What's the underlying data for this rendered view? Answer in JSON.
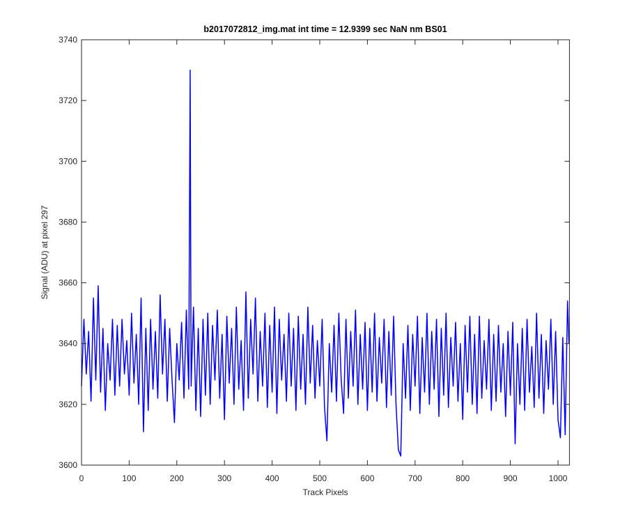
{
  "chart_data": {
    "type": "line",
    "title": "b2017072812_img.mat int time = 12.9399 sec  NaN nm BS01",
    "x_label": "Track Pixels",
    "y_label": "Signal (ADU) at pixel 297",
    "xlim": [
      0,
      1024
    ],
    "ylim": [
      3600,
      3740
    ],
    "xticks": [
      0,
      100,
      200,
      300,
      400,
      500,
      600,
      700,
      800,
      900,
      1000
    ],
    "yticks": [
      3600,
      3620,
      3640,
      3660,
      3680,
      3700,
      3720,
      3740
    ],
    "x": [
      0,
      5,
      10,
      15,
      20,
      25,
      30,
      35,
      40,
      45,
      50,
      55,
      60,
      65,
      70,
      75,
      80,
      85,
      90,
      95,
      100,
      105,
      110,
      115,
      120,
      125,
      130,
      135,
      140,
      145,
      150,
      155,
      160,
      165,
      170,
      175,
      180,
      185,
      190,
      195,
      200,
      205,
      210,
      215,
      220,
      225,
      228,
      230,
      235,
      240,
      245,
      250,
      255,
      260,
      265,
      270,
      275,
      280,
      285,
      290,
      295,
      300,
      305,
      310,
      315,
      320,
      325,
      330,
      335,
      340,
      345,
      350,
      355,
      360,
      365,
      370,
      375,
      380,
      385,
      390,
      395,
      400,
      405,
      410,
      415,
      420,
      425,
      430,
      435,
      440,
      445,
      450,
      455,
      460,
      465,
      470,
      475,
      480,
      485,
      490,
      495,
      500,
      505,
      510,
      515,
      520,
      525,
      530,
      535,
      540,
      545,
      550,
      555,
      560,
      565,
      570,
      575,
      580,
      585,
      590,
      595,
      600,
      605,
      610,
      615,
      620,
      625,
      630,
      635,
      640,
      645,
      650,
      655,
      660,
      665,
      670,
      675,
      680,
      685,
      690,
      695,
      700,
      705,
      710,
      715,
      720,
      725,
      730,
      735,
      740,
      745,
      750,
      755,
      760,
      765,
      770,
      775,
      780,
      785,
      790,
      795,
      800,
      805,
      810,
      815,
      820,
      825,
      830,
      835,
      840,
      845,
      850,
      855,
      860,
      865,
      870,
      875,
      880,
      885,
      890,
      895,
      900,
      905,
      910,
      915,
      920,
      925,
      930,
      935,
      940,
      945,
      950,
      955,
      960,
      965,
      970,
      975,
      980,
      985,
      990,
      995,
      1000,
      1005,
      1010,
      1015,
      1020,
      1023
    ],
    "series": [
      {
        "name": "signal",
        "color": "#0000ff",
        "values": [
          3626,
          3648,
          3630,
          3644,
          3621,
          3655,
          3628,
          3659,
          3624,
          3645,
          3618,
          3640,
          3628,
          3648,
          3623,
          3646,
          3626,
          3648,
          3630,
          3641,
          3623,
          3650,
          3627,
          3643,
          3620,
          3655,
          3611,
          3645,
          3618,
          3648,
          3625,
          3644,
          3622,
          3656,
          3630,
          3648,
          3621,
          3645,
          3628,
          3614,
          3640,
          3628,
          3647,
          3622,
          3651,
          3625,
          3730,
          3626,
          3652,
          3618,
          3645,
          3616,
          3648,
          3623,
          3650,
          3620,
          3646,
          3628,
          3651,
          3622,
          3643,
          3615,
          3649,
          3627,
          3645,
          3620,
          3652,
          3625,
          3641,
          3618,
          3657,
          3622,
          3648,
          3630,
          3655,
          3621,
          3644,
          3626,
          3650,
          3619,
          3646,
          3624,
          3652,
          3617,
          3648,
          3628,
          3643,
          3621,
          3650,
          3626,
          3645,
          3618,
          3649,
          3625,
          3643,
          3620,
          3652,
          3627,
          3646,
          3622,
          3641,
          3626,
          3648,
          3619,
          3608,
          3640,
          3624,
          3646,
          3621,
          3650,
          3628,
          3617,
          3648,
          3622,
          3644,
          3626,
          3651,
          3620,
          3643,
          3625,
          3647,
          3618,
          3645,
          3624,
          3650,
          3621,
          3642,
          3627,
          3648,
          3619,
          3644,
          3623,
          3649,
          3620,
          3605,
          3603,
          3640,
          3622,
          3646,
          3618,
          3643,
          3626,
          3649,
          3617,
          3642,
          3624,
          3650,
          3620,
          3644,
          3625,
          3648,
          3616,
          3645,
          3623,
          3650,
          3619,
          3642,
          3626,
          3647,
          3621,
          3640,
          3615,
          3646,
          3624,
          3649,
          3620,
          3643,
          3617,
          3649,
          3622,
          3641,
          3625,
          3648,
          3618,
          3643,
          3621,
          3646,
          3624,
          3640,
          3616,
          3644,
          3623,
          3647,
          3607,
          3640,
          3620,
          3645,
          3618,
          3648,
          3624,
          3639,
          3619,
          3650,
          3622,
          3643,
          3617,
          3641,
          3625,
          3648,
          3620,
          3644,
          3615,
          3609,
          3642,
          3610,
          3654,
          3640
        ]
      }
    ]
  }
}
